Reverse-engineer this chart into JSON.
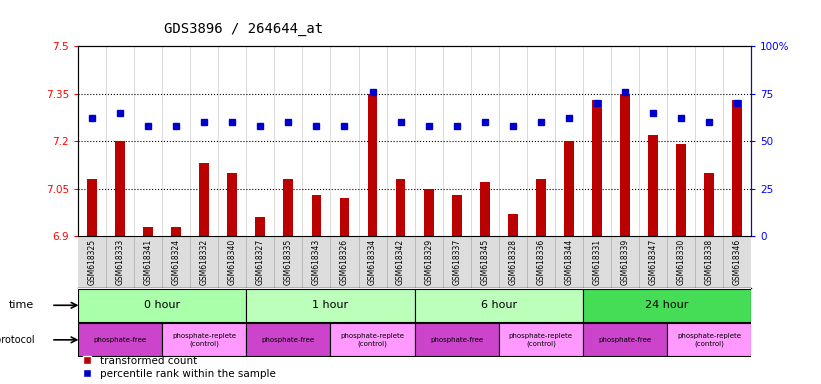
{
  "title": "GDS3896 / 264644_at",
  "samples": [
    "GSM618325",
    "GSM618333",
    "GSM618341",
    "GSM618324",
    "GSM618332",
    "GSM618340",
    "GSM618327",
    "GSM618335",
    "GSM618343",
    "GSM618326",
    "GSM618334",
    "GSM618342",
    "GSM618329",
    "GSM618337",
    "GSM618345",
    "GSM618328",
    "GSM618336",
    "GSM618344",
    "GSM618331",
    "GSM618339",
    "GSM618347",
    "GSM618330",
    "GSM618338",
    "GSM618346"
  ],
  "transformed_count": [
    7.08,
    7.2,
    6.93,
    6.93,
    7.13,
    7.1,
    6.96,
    7.08,
    7.03,
    7.02,
    7.35,
    7.08,
    7.05,
    7.03,
    7.07,
    6.97,
    7.08,
    7.2,
    7.33,
    7.35,
    7.22,
    7.19,
    7.1,
    7.33
  ],
  "percentile_rank": [
    62,
    65,
    58,
    58,
    60,
    60,
    58,
    60,
    58,
    58,
    76,
    60,
    58,
    58,
    60,
    58,
    60,
    62,
    70,
    76,
    65,
    62,
    60,
    70
  ],
  "ylim": [
    6.9,
    7.5
  ],
  "y_ticks": [
    6.9,
    7.05,
    7.2,
    7.35,
    7.5
  ],
  "y_tick_labels": [
    "6.9",
    "7.05",
    "7.2",
    "7.35",
    "7.5"
  ],
  "y2_ticks": [
    0,
    25,
    50,
    75,
    100
  ],
  "y2_tick_labels": [
    "0",
    "25",
    "50",
    "75",
    "100%"
  ],
  "dotted_lines": [
    7.05,
    7.2,
    7.35
  ],
  "bar_color": "#bb0000",
  "dot_color": "#0000cc",
  "bar_bottom": 6.9,
  "time_groups": [
    {
      "label": "0 hour",
      "start": 0,
      "end": 6,
      "color": "#99ee99"
    },
    {
      "label": "1 hour",
      "start": 6,
      "end": 12,
      "color": "#aaffaa"
    },
    {
      "label": "6 hour",
      "start": 12,
      "end": 18,
      "color": "#aaffaa"
    },
    {
      "label": "24 hour",
      "start": 18,
      "end": 24,
      "color": "#44cc44"
    }
  ],
  "protocol_groups": [
    {
      "label": "phosphate-free",
      "start": 0,
      "end": 3,
      "color": "#cc44cc"
    },
    {
      "label": "phosphate-replete\n(control)",
      "start": 3,
      "end": 6,
      "color": "#ff99ff"
    },
    {
      "label": "phosphate-free",
      "start": 6,
      "end": 9,
      "color": "#cc44cc"
    },
    {
      "label": "phosphate-replete\n(control)",
      "start": 9,
      "end": 12,
      "color": "#ff99ff"
    },
    {
      "label": "phosphate-free",
      "start": 12,
      "end": 15,
      "color": "#cc44cc"
    },
    {
      "label": "phosphate-replete\n(control)",
      "start": 15,
      "end": 18,
      "color": "#ff99ff"
    },
    {
      "label": "phosphate-free",
      "start": 18,
      "end": 21,
      "color": "#cc44cc"
    },
    {
      "label": "phosphate-replete\n(control)",
      "start": 21,
      "end": 24,
      "color": "#ff99ff"
    }
  ]
}
